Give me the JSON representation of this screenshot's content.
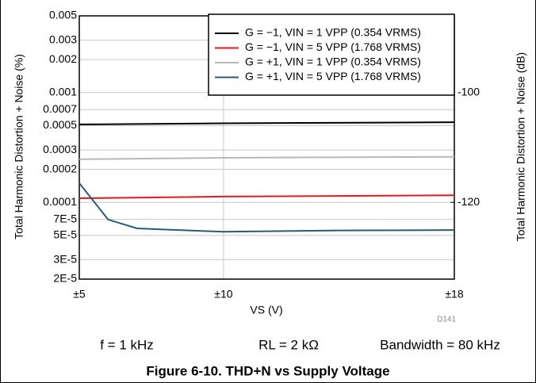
{
  "chart_data": {
    "type": "line",
    "title": "Figure 6-10. THD+N vs Supply Voltage",
    "x_label": "VS (V)",
    "y_label": "Total Harmonic Distortion + Noise (%)",
    "y2_label": "Total Harmonic Distortion + Noise (dB)",
    "annotations": [
      "f = 1 kHz",
      "RL = 2 kΩ",
      "Bandwidth = 80 kHz",
      "D141"
    ],
    "x_scale": "linear",
    "y_scale": "log",
    "grid": true,
    "legend_position": "upper right",
    "xlim": [
      5,
      18
    ],
    "xticks": [
      {
        "value": 5,
        "label": "±5"
      },
      {
        "value": 10,
        "label": "±10"
      },
      {
        "value": 18,
        "label": "±18"
      }
    ],
    "ylim": [
      2e-05,
      0.005
    ],
    "yticks": [
      0.005,
      0.003,
      0.002,
      0.001,
      0.0007,
      0.0005,
      0.0003,
      0.0002,
      0.0001,
      {
        "value": 7e-05,
        "label": "7E-5"
      },
      {
        "value": 5e-05,
        "label": "5E-5"
      },
      {
        "value": 3e-05,
        "label": "3E-5"
      },
      {
        "value": 2e-05,
        "label": "2E-5"
      }
    ],
    "y2lim": [
      -133.98,
      -86.02
    ],
    "y2ticks": [
      -100,
      -120
    ],
    "series": [
      {
        "name": "G = −1, VIN = 1 VPP (0.354 VRMS)",
        "color": "#000000",
        "x": [
          5,
          10,
          18
        ],
        "values": [
          0.000513,
          0.000525,
          0.000537
        ]
      },
      {
        "name": "G = −1, VIN = 5 VPP (1.768 VRMS)",
        "color": "#e8171f",
        "x": [
          5,
          10,
          18
        ],
        "values": [
          0.000109,
          0.000113,
          0.000116
        ]
      },
      {
        "name": "G = +1, VIN = 1 VPP (0.354 VRMS)",
        "color": "#b8b8b8",
        "x": [
          5,
          10,
          18
        ],
        "values": [
          0.000247,
          0.000255,
          0.00026
        ]
      },
      {
        "name": "G = +1, VIN = 5 VPP (1.768 VRMS)",
        "color": "#2a5b73",
        "x": [
          5,
          6,
          7,
          8,
          10,
          14,
          18
        ],
        "values": [
          0.00015,
          6.97e-05,
          5.8e-05,
          5.65e-05,
          5.4e-05,
          5.55e-05,
          5.6e-05
        ]
      }
    ]
  }
}
